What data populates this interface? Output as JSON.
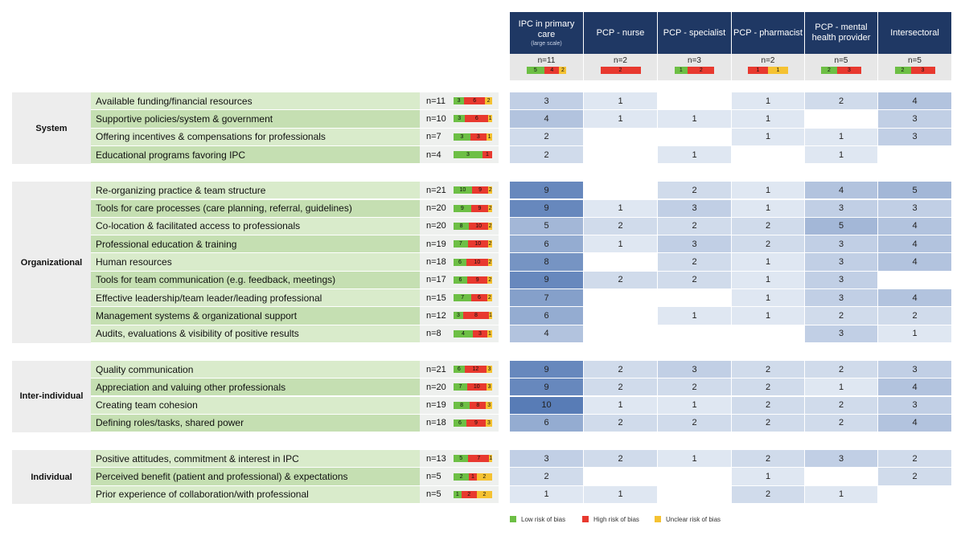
{
  "columns": [
    {
      "title": "IPC in primary care",
      "subtitle": "(large scale)",
      "n": "n=11",
      "bias": [
        5,
        4,
        2
      ]
    },
    {
      "title": "PCP - nurse",
      "n": "n=2",
      "bias": [
        null,
        2,
        null
      ]
    },
    {
      "title": "PCP - specialist",
      "n": "n=3",
      "bias": [
        1,
        2,
        null
      ]
    },
    {
      "title": "PCP - pharmacist",
      "n": "n=2",
      "bias": [
        null,
        1,
        1
      ]
    },
    {
      "title": "PCP - mental health provider",
      "n": "n=5",
      "bias": [
        2,
        3,
        null
      ]
    },
    {
      "title": "Intersectoral",
      "n": "n=5",
      "bias": [
        2,
        3,
        null
      ]
    }
  ],
  "groups": [
    {
      "label": "System",
      "rows": [
        {
          "label": "Available funding/financial resources",
          "n": "n=11",
          "bias": [
            3,
            6,
            2
          ],
          "values": [
            3,
            1,
            null,
            1,
            2,
            4
          ]
        },
        {
          "label": "Supportive policies/system & government",
          "n": "n=10",
          "bias": [
            3,
            6,
            1
          ],
          "values": [
            4,
            1,
            1,
            1,
            null,
            3
          ]
        },
        {
          "label": "Offering incentives & compensations for professionals",
          "n": "n=7",
          "bias": [
            3,
            3,
            1
          ],
          "values": [
            2,
            null,
            null,
            1,
            1,
            3
          ]
        },
        {
          "label": "Educational programs favoring IPC",
          "n": "n=4",
          "bias": [
            3,
            1,
            null
          ],
          "values": [
            2,
            null,
            1,
            null,
            1,
            null
          ]
        }
      ]
    },
    {
      "label": "Organizational",
      "rows": [
        {
          "label": "Re-organizing practice & team structure",
          "n": "n=21",
          "bias": [
            10,
            9,
            2
          ],
          "values": [
            9,
            null,
            2,
            1,
            4,
            5
          ]
        },
        {
          "label": "Tools for care processes (care planning, referral, guidelines)",
          "n": "n=20",
          "bias": [
            9,
            9,
            2
          ],
          "values": [
            9,
            1,
            3,
            1,
            3,
            3
          ]
        },
        {
          "label": "Co-location & facilitated access to professionals",
          "n": "n=20",
          "bias": [
            8,
            10,
            2
          ],
          "values": [
            5,
            2,
            2,
            2,
            5,
            4
          ]
        },
        {
          "label": "Professional education & training",
          "n": "n=19",
          "bias": [
            7,
            10,
            2
          ],
          "values": [
            6,
            1,
            3,
            2,
            3,
            4
          ]
        },
        {
          "label": "Human resources",
          "n": "n=18",
          "bias": [
            6,
            10,
            2
          ],
          "values": [
            8,
            null,
            2,
            1,
            3,
            4
          ]
        },
        {
          "label": "Tools for team communication (e.g. feedback, meetings)",
          "n": "n=17",
          "bias": [
            6,
            9,
            2
          ],
          "values": [
            9,
            2,
            2,
            1,
            3,
            null
          ]
        },
        {
          "label": "Effective leadership/team leader/leading professional",
          "n": "n=15",
          "bias": [
            7,
            6,
            2
          ],
          "values": [
            7,
            null,
            null,
            1,
            3,
            4
          ]
        },
        {
          "label": "Management systems & organizational support",
          "n": "n=12",
          "bias": [
            3,
            8,
            1
          ],
          "values": [
            6,
            null,
            1,
            1,
            2,
            2
          ]
        },
        {
          "label": "Audits, evaluations & visibility of positive results",
          "n": "n=8",
          "bias": [
            4,
            3,
            1
          ],
          "values": [
            4,
            null,
            null,
            null,
            3,
            1
          ]
        }
      ]
    },
    {
      "label": "Inter-individual",
      "rows": [
        {
          "label": "Quality communication",
          "n": "n=21",
          "bias": [
            6,
            12,
            3
          ],
          "values": [
            9,
            2,
            3,
            2,
            2,
            3
          ]
        },
        {
          "label": "Appreciation and valuing other professionals",
          "n": "n=20",
          "bias": [
            7,
            10,
            3
          ],
          "values": [
            9,
            2,
            2,
            2,
            1,
            4
          ]
        },
        {
          "label": "Creating team cohesion",
          "n": "n=19",
          "bias": [
            8,
            8,
            3
          ],
          "values": [
            10,
            1,
            1,
            2,
            2,
            3
          ]
        },
        {
          "label": "Defining roles/tasks, shared power",
          "n": "n=18",
          "bias": [
            6,
            9,
            3
          ],
          "values": [
            6,
            2,
            2,
            2,
            2,
            4
          ]
        }
      ]
    },
    {
      "label": "Individual",
      "rows": [
        {
          "label": "Positive attitudes, commitment & interest in IPC",
          "n": "n=13",
          "bias": [
            5,
            7,
            1
          ],
          "values": [
            3,
            2,
            1,
            2,
            3,
            2
          ]
        },
        {
          "label": "Perceived benefit (patient and professional) & expectations",
          "n": "n=5",
          "bias": [
            2,
            1,
            2
          ],
          "values": [
            2,
            null,
            null,
            1,
            null,
            2
          ]
        },
        {
          "label": "Prior experience of collaboration/with professional",
          "n": "n=5",
          "bias": [
            1,
            2,
            2
          ],
          "values": [
            1,
            1,
            null,
            2,
            1,
            null
          ]
        }
      ]
    }
  ],
  "legend": [
    {
      "label": "Low risk of bias",
      "color": "#6dbf45"
    },
    {
      "label": "High risk of bias",
      "color": "#e8392f"
    },
    {
      "label": "Unclear risk of bias",
      "color": "#f5c232"
    }
  ]
}
